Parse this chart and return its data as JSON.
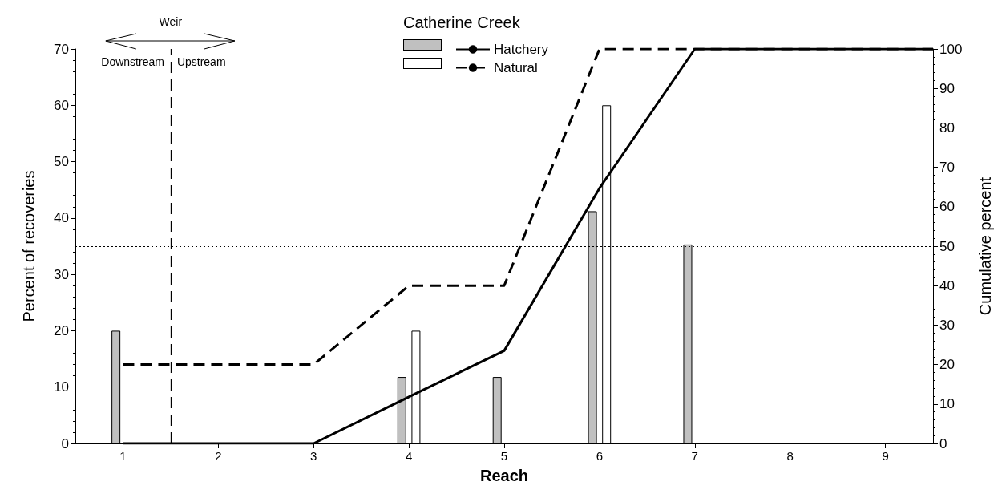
{
  "chart_data": {
    "type": "bar",
    "legend_title": "Catherine Creek",
    "xlabel": "Reach",
    "ylabel": "Percent of recoveries",
    "y2label": "Cumulative percent",
    "xlim": [
      0.5,
      9.5
    ],
    "xticks": [
      1,
      2,
      3,
      4,
      5,
      6,
      7,
      8,
      9
    ],
    "ylim": [
      0,
      70
    ],
    "yticks": [
      0,
      10,
      20,
      30,
      40,
      50,
      60,
      70
    ],
    "y2lim": [
      0,
      100
    ],
    "y2ticks": [
      0,
      10,
      20,
      30,
      40,
      50,
      60,
      70,
      80,
      90,
      100
    ],
    "grid": false,
    "legend": "top",
    "marker": "none",
    "series": [
      {
        "color": "#c0c0c0",
        "x": [
          1,
          4,
          5,
          6,
          7
        ],
        "values": [
          20,
          11.8,
          11.8,
          41.2,
          35.3
        ]
      },
      {
        "color": "#ffffff",
        "x": [
          4,
          6
        ],
        "values": [
          20,
          60
        ]
      },
      {
        "name": "Hatchery",
        "type": "line",
        "axis": "y2",
        "color": "#000000",
        "line_style": "solid",
        "x": [
          1,
          2,
          3,
          4,
          5,
          6,
          7,
          8,
          9,
          9.5
        ],
        "values": [
          0,
          0,
          0,
          11.8,
          23.5,
          64.7,
          100,
          100,
          100,
          100
        ]
      },
      {
        "name": "Natural",
        "type": "line",
        "axis": "y2",
        "color": "#000000",
        "line_style": "dashed",
        "x": [
          1,
          2,
          3,
          4,
          5,
          6,
          7,
          8,
          9,
          9.5
        ],
        "values": [
          20,
          20,
          20,
          40,
          40,
          100,
          100,
          100,
          100,
          100
        ]
      }
    ],
    "ref_lines": [
      {
        "axis": "x",
        "value": 1.5,
        "label": "Weir",
        "line_style": "dashed",
        "color": "#000000"
      },
      {
        "axis": "y2",
        "value": 50,
        "line_style": "dotted",
        "color": "#000000"
      }
    ],
    "annotations": [
      "Downstream",
      "Upstream"
    ]
  }
}
